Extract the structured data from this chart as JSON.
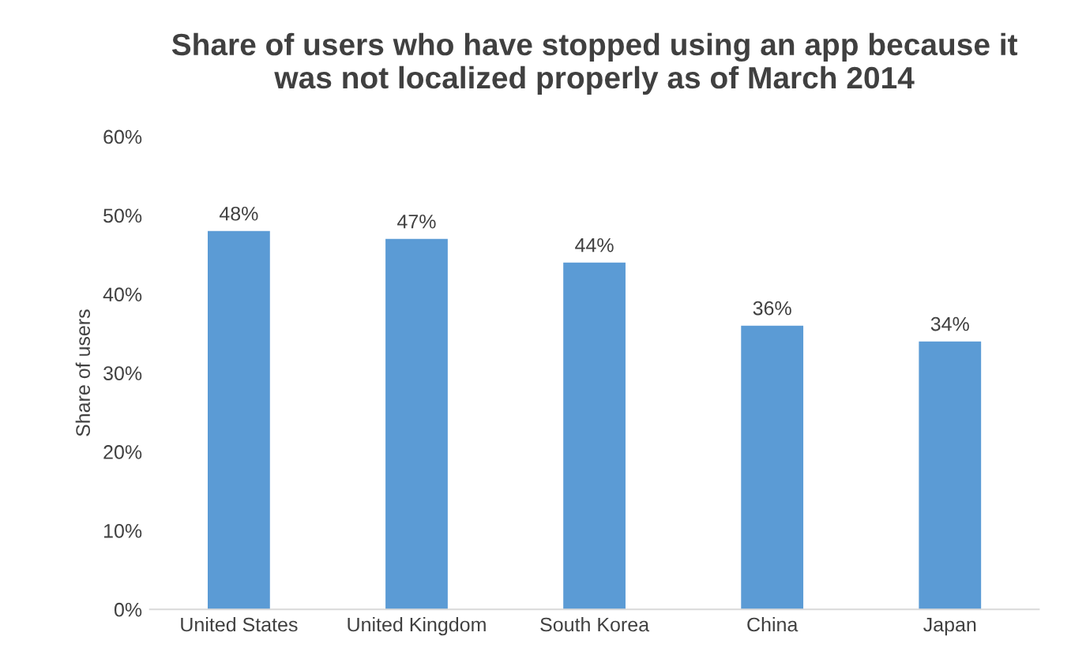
{
  "chart_data": {
    "type": "bar",
    "title": "Share of users who have stopped using an app because it\nwas not localized properly as of March 2014",
    "ylabel": "Share of users",
    "categories": [
      "United States",
      "United Kingdom",
      "South Korea",
      "China",
      "Japan"
    ],
    "values": [
      48,
      47,
      44,
      36,
      34
    ],
    "color": "#5b9bd5",
    "value_labels": [
      "48%",
      "47%",
      "44%",
      "36%",
      "34%"
    ],
    "ylim": [
      0,
      60
    ],
    "yticks": [
      {
        "value": 0,
        "label": "0%"
      },
      {
        "value": 10,
        "label": "10%"
      },
      {
        "value": 20,
        "label": "20%"
      },
      {
        "value": 30,
        "label": "30%"
      },
      {
        "value": 40,
        "label": "40%"
      },
      {
        "value": 50,
        "label": "50%"
      },
      {
        "value": 60,
        "label": "60%"
      }
    ],
    "grid": false,
    "legend": false
  }
}
